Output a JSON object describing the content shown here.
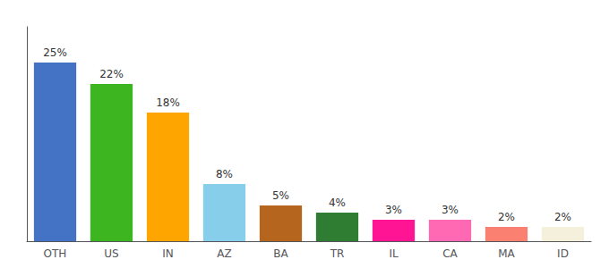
{
  "chart_data": {
    "type": "bar",
    "categories": [
      "OTH",
      "US",
      "IN",
      "AZ",
      "BA",
      "TR",
      "IL",
      "CA",
      "MA",
      "ID"
    ],
    "values": [
      25,
      22,
      18,
      8,
      5,
      4,
      3,
      3,
      2,
      2
    ],
    "value_labels": [
      "25%",
      "22%",
      "18%",
      "8%",
      "5%",
      "4%",
      "3%",
      "3%",
      "2%",
      "2%"
    ],
    "colors": [
      "#4472C4",
      "#3CB520",
      "#FFA500",
      "#87CEEB",
      "#B5651D",
      "#2E7D32",
      "#FF1493",
      "#FF69B4",
      "#FA8072",
      "#F5F0DC"
    ],
    "ylim": [
      0,
      30
    ],
    "tick_labels": "x",
    "data_labels": true,
    "grid": false
  }
}
